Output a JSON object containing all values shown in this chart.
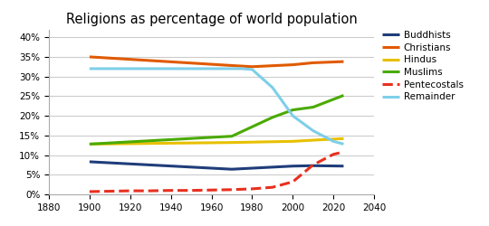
{
  "title": "Religions as percentage of world population",
  "series": {
    "Buddhists": {
      "x": [
        1900,
        1970,
        2000,
        2010,
        2025
      ],
      "y": [
        0.083,
        0.064,
        0.072,
        0.073,
        0.072
      ],
      "color": "#1f3d7a",
      "linestyle": "-",
      "linewidth": 2.2
    },
    "Christians": {
      "x": [
        1900,
        1970,
        1980,
        2000,
        2010,
        2025
      ],
      "y": [
        0.35,
        0.328,
        0.325,
        0.33,
        0.335,
        0.338
      ],
      "color": "#e05a00",
      "linestyle": "-",
      "linewidth": 2.2
    },
    "Hindus": {
      "x": [
        1900,
        1970,
        2000,
        2010,
        2025
      ],
      "y": [
        0.128,
        0.132,
        0.135,
        0.138,
        0.142
      ],
      "color": "#e8c000",
      "linestyle": "-",
      "linewidth": 2.2
    },
    "Muslims": {
      "x": [
        1900,
        1970,
        1990,
        2000,
        2010,
        2025
      ],
      "y": [
        0.128,
        0.148,
        0.196,
        0.215,
        0.222,
        0.252
      ],
      "color": "#4aaa00",
      "linestyle": "-",
      "linewidth": 2.2
    },
    "Pentecostals": {
      "x": [
        1900,
        1910,
        1920,
        1930,
        1940,
        1950,
        1960,
        1970,
        1980,
        1990,
        2000,
        2010,
        2020,
        2025
      ],
      "y": [
        0.007,
        0.008,
        0.009,
        0.009,
        0.01,
        0.01,
        0.011,
        0.012,
        0.014,
        0.018,
        0.032,
        0.075,
        0.102,
        0.108
      ],
      "color": "#e83020",
      "linestyle": "--",
      "linewidth": 2.2
    },
    "Remainder": {
      "x": [
        1900,
        1970,
        1975,
        1980,
        1990,
        2000,
        2010,
        2020,
        2025
      ],
      "y": [
        0.32,
        0.32,
        0.32,
        0.318,
        0.272,
        0.2,
        0.162,
        0.135,
        0.128
      ],
      "color": "#7ecfe8",
      "linestyle": "-",
      "linewidth": 2.2
    }
  },
  "xlim": [
    1880,
    2040
  ],
  "ylim": [
    0,
    0.42
  ],
  "xticks": [
    1880,
    1900,
    1920,
    1940,
    1960,
    1980,
    2000,
    2020,
    2040
  ],
  "yticks": [
    0.0,
    0.05,
    0.1,
    0.15,
    0.2,
    0.25,
    0.3,
    0.35,
    0.4
  ],
  "background_color": "#ffffff",
  "grid_color": "#cccccc"
}
